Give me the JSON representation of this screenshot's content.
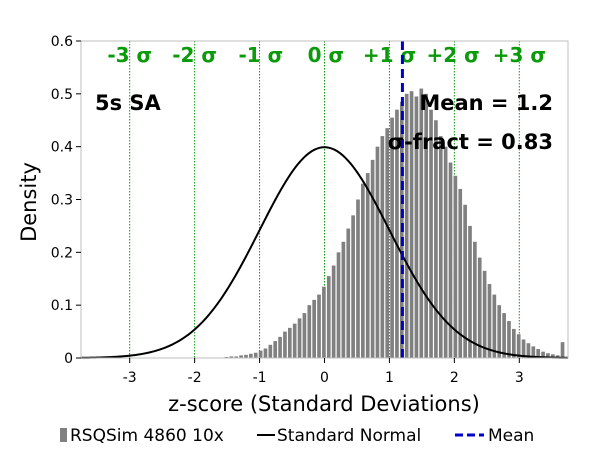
{
  "chart_data": {
    "type": "bar",
    "xlabel": "z-score (Standard Deviations)",
    "ylabel": "Density",
    "xlim": [
      -3.75,
      3.75
    ],
    "ylim": [
      0,
      0.6
    ],
    "xticks": [
      -3,
      -2,
      -1,
      0,
      1,
      2,
      3
    ],
    "xtick_labels": [
      "-3",
      "-2",
      "-1",
      "0",
      "1",
      "2",
      "3"
    ],
    "yticks": [
      0,
      0.1,
      0.2,
      0.3,
      0.4,
      0.5,
      0.6
    ],
    "ytick_labels": [
      "0",
      "0.1",
      "0.2",
      "0.3",
      "0.4",
      "0.5",
      "0.6"
    ],
    "sigma_lines": {
      "positions": [
        -3,
        -2,
        -1,
        0,
        1,
        2,
        3
      ],
      "labels": [
        "-3 σ",
        "-2 σ",
        "-1 σ",
        "0 σ",
        "+1 σ",
        "+2 σ",
        "+3 σ"
      ],
      "color": "#0a9a0a"
    },
    "annotations": {
      "panel": "5s SA",
      "mean": "Mean = 1.2",
      "sigma_fract": "σ-fract = 0.83"
    },
    "mean_value": 1.2,
    "histogram": {
      "name": "RSQSim 4860 10x",
      "color": "#808080",
      "bin_width": 0.075,
      "bin_centers": [
        -1.5,
        -1.425,
        -1.35,
        -1.275,
        -1.2,
        -1.125,
        -1.05,
        -0.975,
        -0.9,
        -0.825,
        -0.75,
        -0.675,
        -0.6,
        -0.525,
        -0.45,
        -0.375,
        -0.3,
        -0.225,
        -0.15,
        -0.075,
        0.0,
        0.075,
        0.15,
        0.225,
        0.3,
        0.375,
        0.45,
        0.525,
        0.6,
        0.675,
        0.75,
        0.825,
        0.9,
        0.975,
        1.05,
        1.125,
        1.2,
        1.275,
        1.35,
        1.425,
        1.5,
        1.575,
        1.65,
        1.725,
        1.8,
        1.875,
        1.95,
        2.025,
        2.1,
        2.175,
        2.25,
        2.325,
        2.4,
        2.475,
        2.55,
        2.625,
        2.7,
        2.775,
        2.85,
        2.925,
        3.0,
        3.075,
        3.15,
        3.225,
        3.3,
        3.375,
        3.45,
        3.525,
        3.6,
        3.675
      ],
      "values": [
        0.002,
        0.003,
        0.003,
        0.005,
        0.006,
        0.008,
        0.01,
        0.014,
        0.018,
        0.025,
        0.032,
        0.04,
        0.05,
        0.057,
        0.065,
        0.075,
        0.085,
        0.1,
        0.11,
        0.12,
        0.135,
        0.155,
        0.175,
        0.2,
        0.22,
        0.245,
        0.27,
        0.3,
        0.33,
        0.35,
        0.375,
        0.4,
        0.42,
        0.435,
        0.455,
        0.47,
        0.485,
        0.5,
        0.505,
        0.495,
        0.51,
        0.5,
        0.47,
        0.45,
        0.42,
        0.4,
        0.37,
        0.345,
        0.32,
        0.29,
        0.25,
        0.22,
        0.19,
        0.165,
        0.14,
        0.12,
        0.1,
        0.085,
        0.07,
        0.055,
        0.045,
        0.035,
        0.028,
        0.022,
        0.017,
        0.012,
        0.009,
        0.007,
        0.005,
        0.03
      ]
    },
    "series": [
      {
        "name": "Standard Normal",
        "color": "#000000"
      },
      {
        "name": "Mean",
        "color": "#0000cc"
      }
    ],
    "legend": {
      "position": "bottom",
      "entries": [
        "RSQSim 4860 10x",
        "Standard Normal",
        "Mean"
      ]
    }
  }
}
